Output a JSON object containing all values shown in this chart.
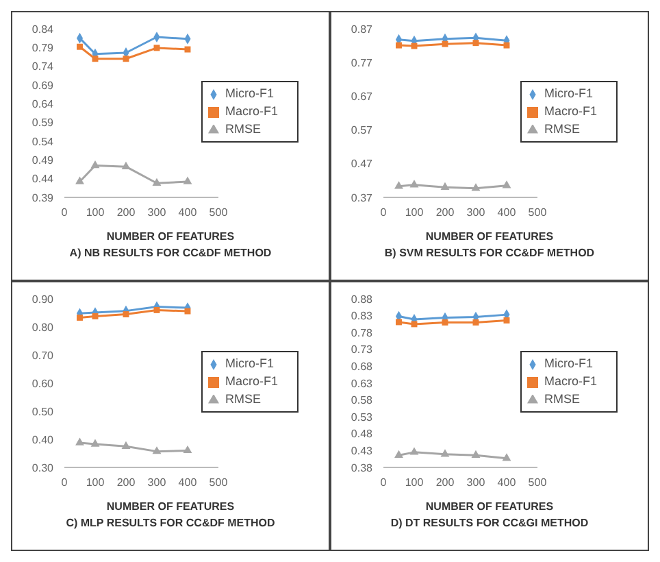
{
  "chart_data": [
    {
      "type": "line",
      "title": "A) NB RESULTS FOR CC&DF METHOD",
      "xlabel": "NUMBER OF FEATURES",
      "x": [
        50,
        100,
        200,
        300,
        400
      ],
      "xlim": [
        0,
        500
      ],
      "xticks": [
        0,
        100,
        200,
        300,
        400,
        500
      ],
      "ylim": [
        0.39,
        0.84
      ],
      "yticks": [
        0.39,
        0.44,
        0.49,
        0.54,
        0.59,
        0.64,
        0.69,
        0.74,
        0.79,
        0.84
      ],
      "grid": false,
      "legend": "right",
      "series": [
        {
          "name": "Micro-F1",
          "color": "#5b9bd5",
          "marker": "diamond",
          "values": [
            0.815,
            0.773,
            0.776,
            0.818,
            0.813
          ]
        },
        {
          "name": "Macro-F1",
          "color": "#ed7d31",
          "marker": "square",
          "values": [
            0.792,
            0.76,
            0.76,
            0.789,
            0.785
          ]
        },
        {
          "name": "RMSE",
          "color": "#a5a5a5",
          "marker": "triangle",
          "values": [
            0.432,
            0.475,
            0.472,
            0.428,
            0.432
          ]
        }
      ]
    },
    {
      "type": "line",
      "title": "B) SVM RESULTS FOR CC&DF METHOD",
      "xlabel": "NUMBER OF FEATURES",
      "x": [
        50,
        100,
        200,
        300,
        400
      ],
      "xlim": [
        0,
        500
      ],
      "xticks": [
        0,
        100,
        200,
        300,
        400,
        500
      ],
      "ylim": [
        0.37,
        0.87
      ],
      "yticks": [
        0.37,
        0.47,
        0.57,
        0.67,
        0.77,
        0.87
      ],
      "grid": false,
      "legend": "right",
      "series": [
        {
          "name": "Micro-F1",
          "color": "#5b9bd5",
          "marker": "diamond",
          "values": [
            0.838,
            0.834,
            0.84,
            0.843,
            0.835
          ]
        },
        {
          "name": "Macro-F1",
          "color": "#ed7d31",
          "marker": "square",
          "values": [
            0.821,
            0.819,
            0.825,
            0.828,
            0.821
          ]
        },
        {
          "name": "RMSE",
          "color": "#a5a5a5",
          "marker": "triangle",
          "values": [
            0.403,
            0.407,
            0.4,
            0.397,
            0.405
          ]
        }
      ]
    },
    {
      "type": "line",
      "title": "C) MLP RESULTS FOR CC&DF METHOD",
      "xlabel": "NUMBER OF FEATURES",
      "x": [
        50,
        100,
        200,
        300,
        400
      ],
      "xlim": [
        0,
        500
      ],
      "xticks": [
        0,
        100,
        200,
        300,
        400,
        500
      ],
      "ylim": [
        0.3,
        0.9
      ],
      "yticks": [
        {
          "value": 0.3,
          "label": "0.30"
        },
        {
          "value": 0.4,
          "label": "0.40"
        },
        {
          "value": 0.5,
          "label": "0.50"
        },
        {
          "value": 0.6,
          "label": "0.60"
        },
        {
          "value": 0.7,
          "label": "0.70"
        },
        {
          "value": 0.8,
          "label": "0.80"
        },
        {
          "value": 0.9,
          "label": "0.90"
        }
      ],
      "grid": false,
      "legend": "right",
      "series": [
        {
          "name": "Micro-F1",
          "color": "#5b9bd5",
          "marker": "diamond",
          "values": [
            0.848,
            0.851,
            0.857,
            0.872,
            0.868
          ]
        },
        {
          "name": "Macro-F1",
          "color": "#ed7d31",
          "marker": "square",
          "values": [
            0.833,
            0.838,
            0.845,
            0.86,
            0.856
          ]
        },
        {
          "name": "RMSE",
          "color": "#a5a5a5",
          "marker": "triangle",
          "values": [
            0.388,
            0.383,
            0.375,
            0.357,
            0.36
          ]
        }
      ]
    },
    {
      "type": "line",
      "title": "D) DT RESULTS FOR CC&GI METHOD",
      "xlabel": "NUMBER OF FEATURES",
      "x": [
        50,
        100,
        200,
        300,
        400
      ],
      "xlim": [
        0,
        500
      ],
      "xticks": [
        0,
        100,
        200,
        300,
        400,
        500
      ],
      "ylim": [
        0.38,
        0.88
      ],
      "yticks": [
        0.38,
        0.43,
        0.48,
        0.53,
        0.58,
        0.63,
        0.68,
        0.73,
        0.78,
        0.83,
        0.88
      ],
      "grid": false,
      "legend": "right",
      "series": [
        {
          "name": "Micro-F1",
          "color": "#5b9bd5",
          "marker": "diamond",
          "values": [
            0.828,
            0.819,
            0.824,
            0.826,
            0.833
          ]
        },
        {
          "name": "Macro-F1",
          "color": "#ed7d31",
          "marker": "square",
          "values": [
            0.811,
            0.805,
            0.81,
            0.81,
            0.816
          ]
        },
        {
          "name": "RMSE",
          "color": "#a5a5a5",
          "marker": "triangle",
          "values": [
            0.416,
            0.425,
            0.419,
            0.416,
            0.407
          ]
        }
      ]
    }
  ]
}
